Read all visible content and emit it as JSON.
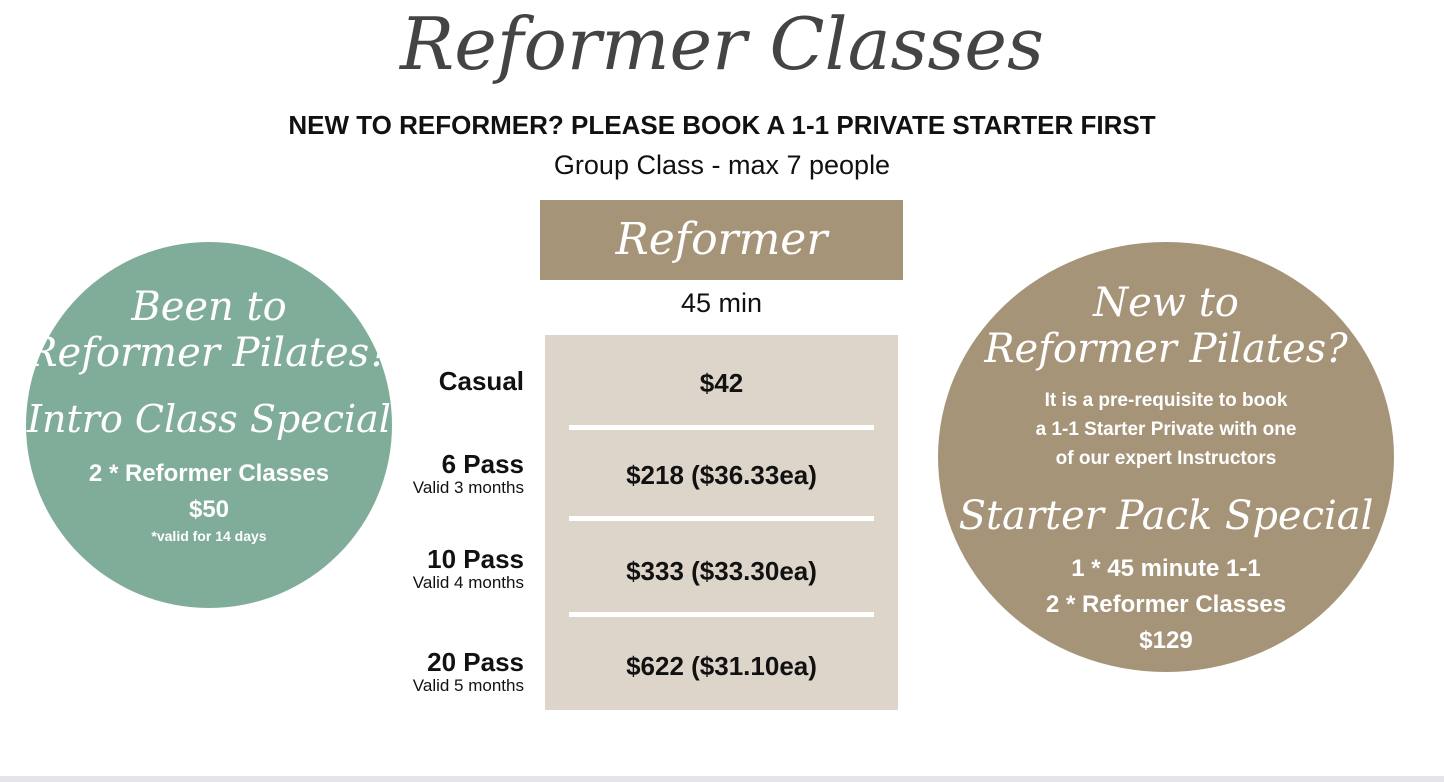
{
  "title": "Reformer Classes",
  "notice": "NEW TO REFORMER? PLEASE BOOK A 1-1 PRIVATE STARTER FIRST",
  "group": "Group Class - max 7 people",
  "table": {
    "header": "Reformer",
    "duration": "45 min",
    "rows": [
      {
        "name": "Casual",
        "validity": "",
        "price": "$42"
      },
      {
        "name": "6 Pass",
        "validity": "Valid 3 months",
        "price": "$218 ($36.33ea)"
      },
      {
        "name": "10 Pass",
        "validity": "Valid 4 months",
        "price": "$333 ($33.30ea)"
      },
      {
        "name": "20 Pass",
        "validity": "Valid 5 months",
        "price": "$622 ($31.10ea)"
      }
    ]
  },
  "left_circle": {
    "line1": "Been to",
    "line2": "Reformer Pilates?",
    "special": "Intro Class Special",
    "offer": "2 * Reformer Classes",
    "price": "$50",
    "note": "*valid for 14 days",
    "color": "#80ad9a"
  },
  "right_circle": {
    "line1": "New to",
    "line2": "Reformer Pilates?",
    "info": [
      "It is a pre-requisite to book",
      "a 1-1 Starter Private with one",
      "of our expert Instructors"
    ],
    "special": "Starter Pack Special",
    "offer": [
      "1 * 45 minute 1-1",
      "2 * Reformer Classes",
      "$129"
    ],
    "color": "#a69478"
  }
}
